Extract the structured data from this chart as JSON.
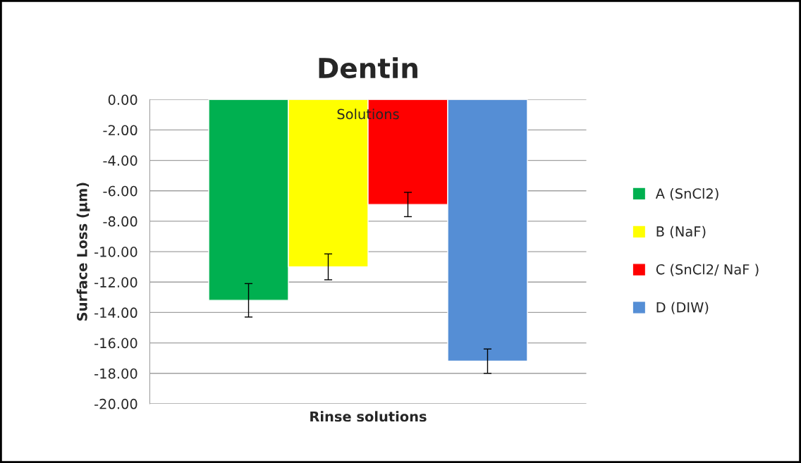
{
  "chart_data": {
    "type": "bar",
    "title": "Dentin",
    "xlabel": "Rinse solutions",
    "ylabel": "Surface Loss (µm)",
    "categories": [
      "Solutions"
    ],
    "series": [
      {
        "name": "A (SnCl2)",
        "color": "#00b050",
        "values": [
          -13.2
        ],
        "errors": [
          1.1
        ]
      },
      {
        "name": "B (NaF)",
        "color": "#ffff00",
        "values": [
          -11.0
        ],
        "errors": [
          0.85
        ]
      },
      {
        "name": "C (SnCl2/ NaF )",
        "color": "#ff0000",
        "values": [
          -6.9
        ],
        "errors": [
          0.8
        ]
      },
      {
        "name": "D (DIW)",
        "color": "#558ed5",
        "values": [
          -17.2
        ],
        "errors": [
          0.8
        ]
      }
    ],
    "ylim": [
      -20,
      0
    ],
    "yticks": [
      {
        "value": 0,
        "label": "0.00"
      },
      {
        "value": -2,
        "label": "-2.00"
      },
      {
        "value": -4,
        "label": "-4.00"
      },
      {
        "value": -6,
        "label": "-6.00"
      },
      {
        "value": -8,
        "label": "-8.00"
      },
      {
        "value": -10,
        "label": "-10.00"
      },
      {
        "value": -12,
        "label": "-12.00"
      },
      {
        "value": -14,
        "label": "-14.00"
      },
      {
        "value": -16,
        "label": "-16.00"
      },
      {
        "value": -18,
        "label": "-18.00"
      },
      {
        "value": -20,
        "label": "-20.00"
      }
    ],
    "grid": "y",
    "legend": "right"
  }
}
